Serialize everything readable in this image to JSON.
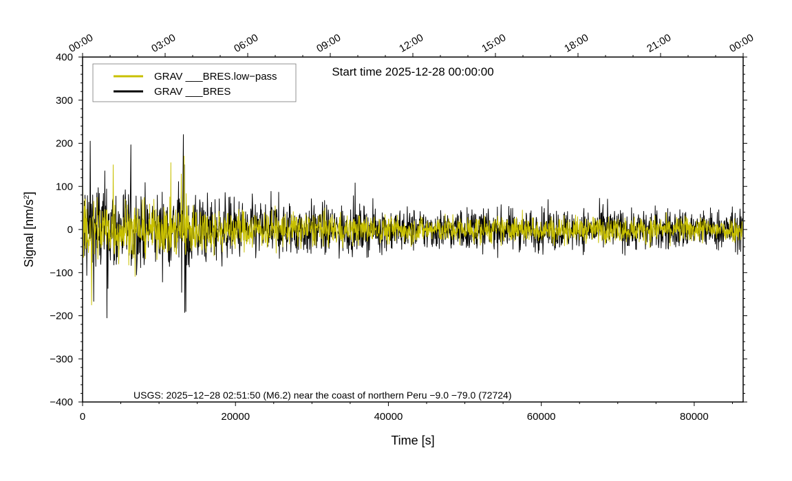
{
  "chart_data": {
    "type": "line",
    "title": "Start time 2025-12-28 00:00:00",
    "xlabel": "Time [s]",
    "ylabel_main": "Signal [nm/s",
    "ylabel_sup": "2",
    "ylabel_close": "]",
    "xlim": [
      0,
      86400
    ],
    "ylim": [
      -400,
      400
    ],
    "x_ticks": [
      0,
      20000,
      40000,
      60000,
      80000
    ],
    "x_tick_labels": [
      "0",
      "20000",
      "40000",
      "60000",
      "80000"
    ],
    "y_ticks": [
      -400,
      -300,
      -200,
      -100,
      0,
      100,
      200,
      300,
      400
    ],
    "y_tick_labels": [
      "−400",
      "−300",
      "−200",
      "−100",
      "0",
      "100",
      "200",
      "300",
      "400"
    ],
    "top_axis": {
      "ticks": [
        0,
        10800,
        21600,
        32400,
        43200,
        54000,
        64800,
        75600,
        86400
      ],
      "labels": [
        "00:00",
        "03:00",
        "06:00",
        "09:00",
        "12:00",
        "15:00",
        "18:00",
        "21:00",
        "00:00"
      ]
    },
    "annotation": "USGS: 2025−12−28 02:51:50 (M6.2) near the coast of northern Peru −9.0 −79.0 (72724)",
    "legend": {
      "position": "top-left"
    },
    "series": [
      {
        "name": "GRAV ___BRES.low−pass",
        "color": "#c8c000",
        "envelope_x": [
          0,
          3000,
          6000,
          9000,
          12000,
          13500,
          15000,
          20000,
          25000,
          30000,
          35000,
          40000,
          45000,
          50000,
          60000,
          70000,
          80000,
          86400
        ],
        "envelope_amp": [
          120,
          95,
          90,
          75,
          75,
          110,
          70,
          60,
          55,
          50,
          45,
          42,
          40,
          40,
          38,
          38,
          38,
          36
        ],
        "notable_peaks": [
          {
            "x": 4000,
            "y": 150
          },
          {
            "x": 13300,
            "y": 170
          },
          {
            "x": 1200,
            "y": -175
          }
        ]
      },
      {
        "name": "GRAV ___BRES",
        "color": "#000000",
        "envelope_x": [
          0,
          3000,
          6000,
          9000,
          12000,
          13500,
          15000,
          20000,
          25000,
          30000,
          35000,
          40000,
          45000,
          50000,
          60000,
          70000,
          80000,
          86400
        ],
        "envelope_amp": [
          175,
          155,
          130,
          110,
          110,
          200,
          110,
          90,
          85,
          80,
          70,
          65,
          62,
          62,
          62,
          62,
          62,
          60
        ],
        "notable_peaks": [
          {
            "x": 13200,
            "y": 220
          },
          {
            "x": 1000,
            "y": 205
          },
          {
            "x": 3200,
            "y": -205
          },
          {
            "x": 13500,
            "y": -190
          }
        ]
      }
    ]
  }
}
